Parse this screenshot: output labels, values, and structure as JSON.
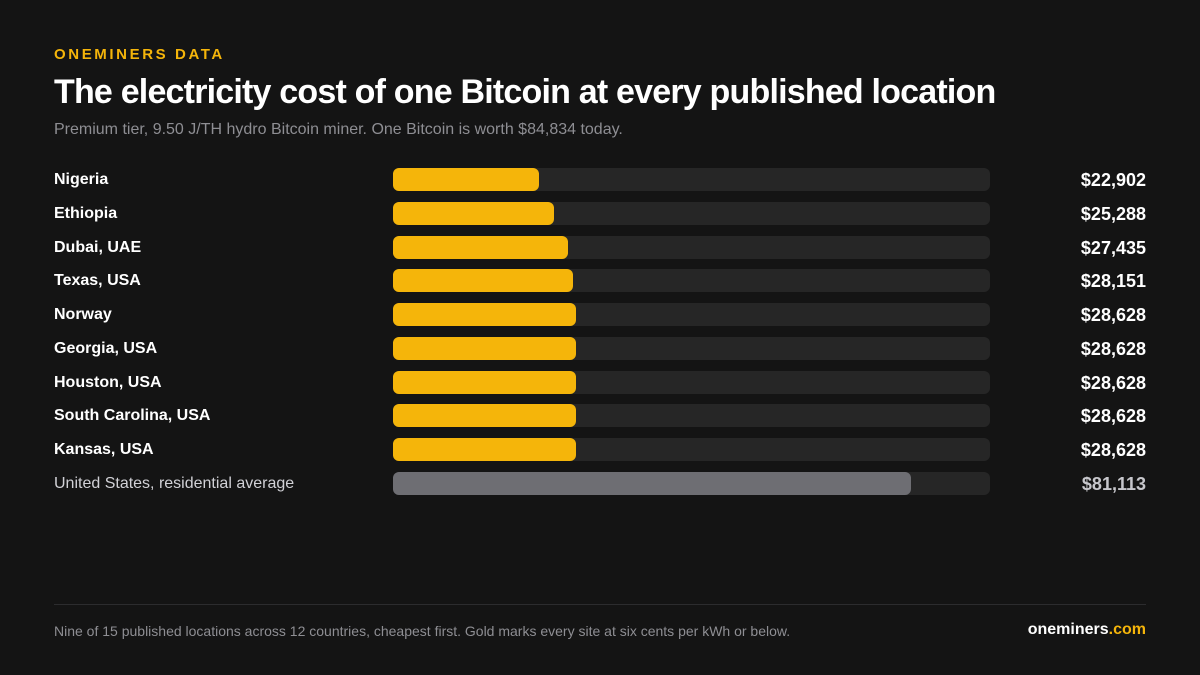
{
  "header": {
    "eyebrow": "ONEMINERS DATA",
    "subtitle": "Premium tier, 9.50 J/TH hydro Bitcoin miner. One Bitcoin is worth $84,834 today."
  },
  "chart_data": {
    "type": "bar",
    "orientation": "horizontal",
    "title": "The electricity cost of one Bitcoin at every published location",
    "xlim": [
      0,
      93500
    ],
    "grid": false,
    "colors": {
      "highlight": "#f5b50a",
      "reference": "#6e6e73",
      "track": "#262626"
    },
    "bars": [
      {
        "label": "Nigeria",
        "value": 22902,
        "display": "$22,902",
        "kind": "highlight"
      },
      {
        "label": "Ethiopia",
        "value": 25288,
        "display": "$25,288",
        "kind": "highlight"
      },
      {
        "label": "Dubai, UAE",
        "value": 27435,
        "display": "$27,435",
        "kind": "highlight"
      },
      {
        "label": "Texas, USA",
        "value": 28151,
        "display": "$28,151",
        "kind": "highlight"
      },
      {
        "label": "Norway",
        "value": 28628,
        "display": "$28,628",
        "kind": "highlight"
      },
      {
        "label": "Georgia, USA",
        "value": 28628,
        "display": "$28,628",
        "kind": "highlight"
      },
      {
        "label": "Houston, USA",
        "value": 28628,
        "display": "$28,628",
        "kind": "highlight"
      },
      {
        "label": "South Carolina, USA",
        "value": 28628,
        "display": "$28,628",
        "kind": "highlight"
      },
      {
        "label": "Kansas, USA",
        "value": 28628,
        "display": "$28,628",
        "kind": "highlight"
      },
      {
        "label": "United States, residential average",
        "value": 81113,
        "display": "$81,113",
        "kind": "reference"
      }
    ]
  },
  "footer": {
    "note": "Nine of 15 published locations across 12 countries, cheapest first. Gold marks every site at six cents per kWh or below.",
    "brand_name": "oneminers",
    "brand_tld": ".com"
  }
}
